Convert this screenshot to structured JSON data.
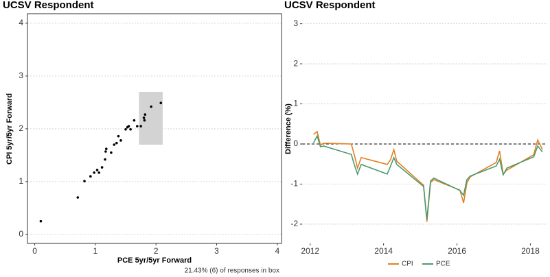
{
  "chart_data": [
    {
      "type": "scatter",
      "title": "UCSV Respondent",
      "x_label": "PCE 5yr/5yr Forward",
      "y_label": "CPI 5yr/5yr Forward",
      "note": "21.43% (6) of responses in box",
      "x": [
        0.1,
        0.71,
        0.82,
        0.92,
        0.98,
        1.03,
        1.06,
        1.11,
        1.16,
        1.17,
        1.18,
        1.26,
        1.31,
        1.35,
        1.38,
        1.42,
        1.5,
        1.53,
        1.55,
        1.58,
        1.64,
        1.69,
        1.75,
        1.8,
        1.81,
        1.82,
        1.92,
        2.08
      ],
      "values": [
        0.25,
        0.7,
        1.01,
        1.1,
        1.17,
        1.22,
        1.17,
        1.27,
        1.42,
        1.57,
        1.62,
        1.55,
        1.7,
        1.73,
        1.86,
        1.78,
        1.99,
        2.03,
        2.05,
        1.99,
        2.16,
        2.05,
        2.05,
        2.21,
        2.16,
        2.27,
        2.42,
        2.49
      ],
      "color": "#000000",
      "highlight_box": {
        "x": [
          1.72,
          2.11
        ],
        "y": [
          1.7,
          2.7
        ],
        "color": "#d3d3d3"
      },
      "xlim": [
        -0.12,
        4.07
      ],
      "ylim": [
        -0.17,
        4.18
      ],
      "xticks": [
        0,
        1,
        2,
        3,
        4
      ],
      "yticks": [
        0,
        1,
        2,
        3,
        4
      ],
      "grid": true
    },
    {
      "type": "line",
      "title": "UCSV Respondent",
      "y_label": "Difference (%)",
      "x": [
        2012.09,
        2012.19,
        2012.28,
        2012.37,
        2013.12,
        2013.2,
        2013.29,
        2013.39,
        2014.1,
        2014.19,
        2014.28,
        2014.36,
        2015.09,
        2015.18,
        2015.28,
        2015.37,
        2016.08,
        2016.18,
        2016.27,
        2016.36,
        2017.07,
        2017.16,
        2017.26,
        2017.36,
        2018.09,
        2018.2,
        2018.33
      ],
      "series": [
        {
          "name": "CPI",
          "color": "#e08020",
          "values": [
            0.24,
            0.31,
            -0.03,
            0.02,
            0.0,
            -0.26,
            -0.6,
            -0.34,
            -0.51,
            -0.39,
            -0.14,
            -0.43,
            -1.03,
            -1.94,
            -0.96,
            -0.89,
            -1.15,
            -1.47,
            -0.97,
            -0.82,
            -0.46,
            -0.17,
            -0.75,
            -0.65,
            -0.27,
            0.1,
            -0.14
          ]
        },
        {
          "name": "PCE",
          "color": "#4a9a6f",
          "values": [
            0.03,
            0.2,
            -0.07,
            -0.05,
            -0.26,
            -0.51,
            -0.75,
            -0.51,
            -0.75,
            -0.55,
            -0.34,
            -0.51,
            -1.06,
            -1.88,
            -0.92,
            -0.85,
            -1.16,
            -1.28,
            -0.89,
            -0.8,
            -0.55,
            -0.38,
            -0.77,
            -0.6,
            -0.32,
            -0.05,
            -0.2
          ]
        }
      ],
      "xlim": [
        2011.78,
        2018.46
      ],
      "ylim": [
        -2.48,
        3.25
      ],
      "xticks": [
        2012,
        2014,
        2016,
        2018
      ],
      "yticks": [
        -2,
        -1,
        0,
        1,
        2,
        3
      ],
      "grid": true,
      "reference_line": 0,
      "legend": "bottom"
    }
  ]
}
